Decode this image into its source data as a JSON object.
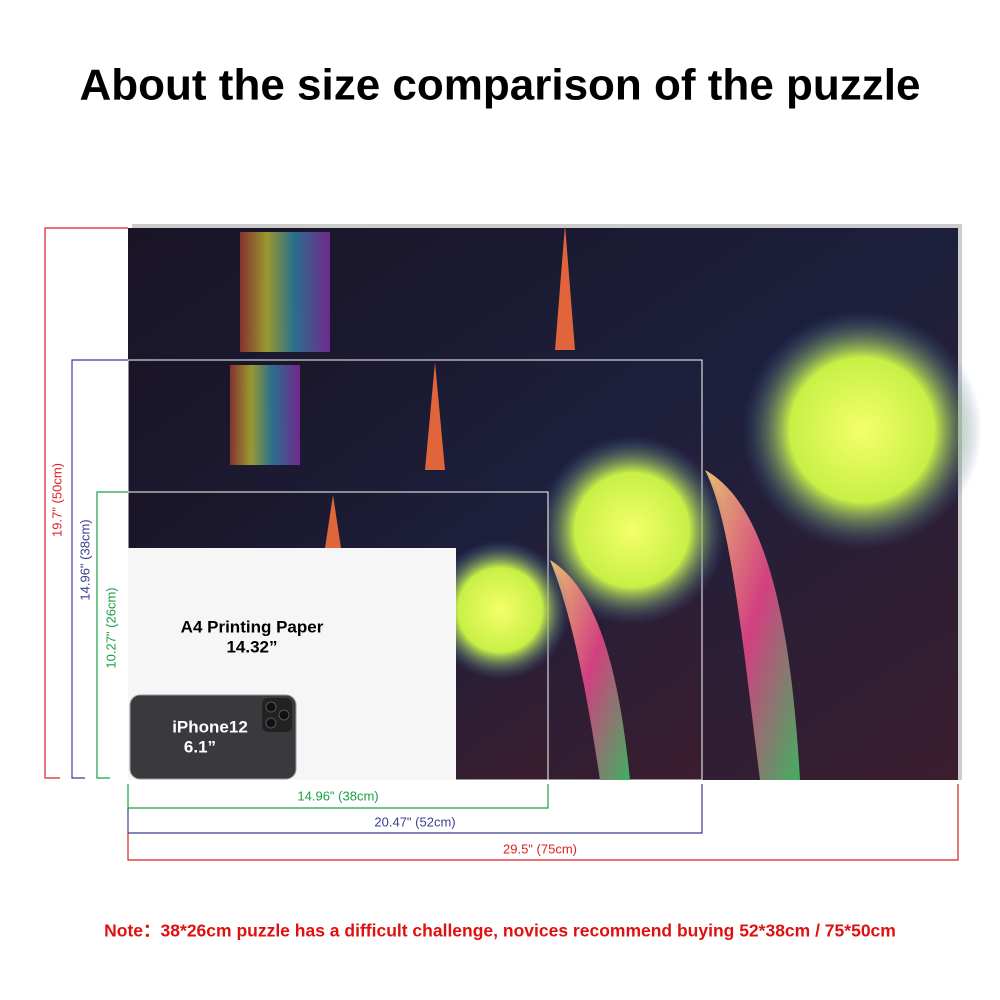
{
  "title": "About the size comparison of the puzzle",
  "puzzles": [
    {
      "width_label": "29.5\" (75cm)",
      "height_label": "19.7\" (50cm)"
    },
    {
      "width_label": "20.47\" (52cm)",
      "height_label": "14.96\" (38cm)"
    },
    {
      "width_label": "14.96\" (38cm)",
      "height_label": "10.27\" (26cm)"
    }
  ],
  "a4": {
    "label": "A4 Printing Paper",
    "size": "14.32”"
  },
  "iphone": {
    "label": "iPhone12",
    "size": "6.1”"
  },
  "note": "Note：38*26cm puzzle has a difficult challenge, novices recommend buying 52*38cm / 75*50cm"
}
